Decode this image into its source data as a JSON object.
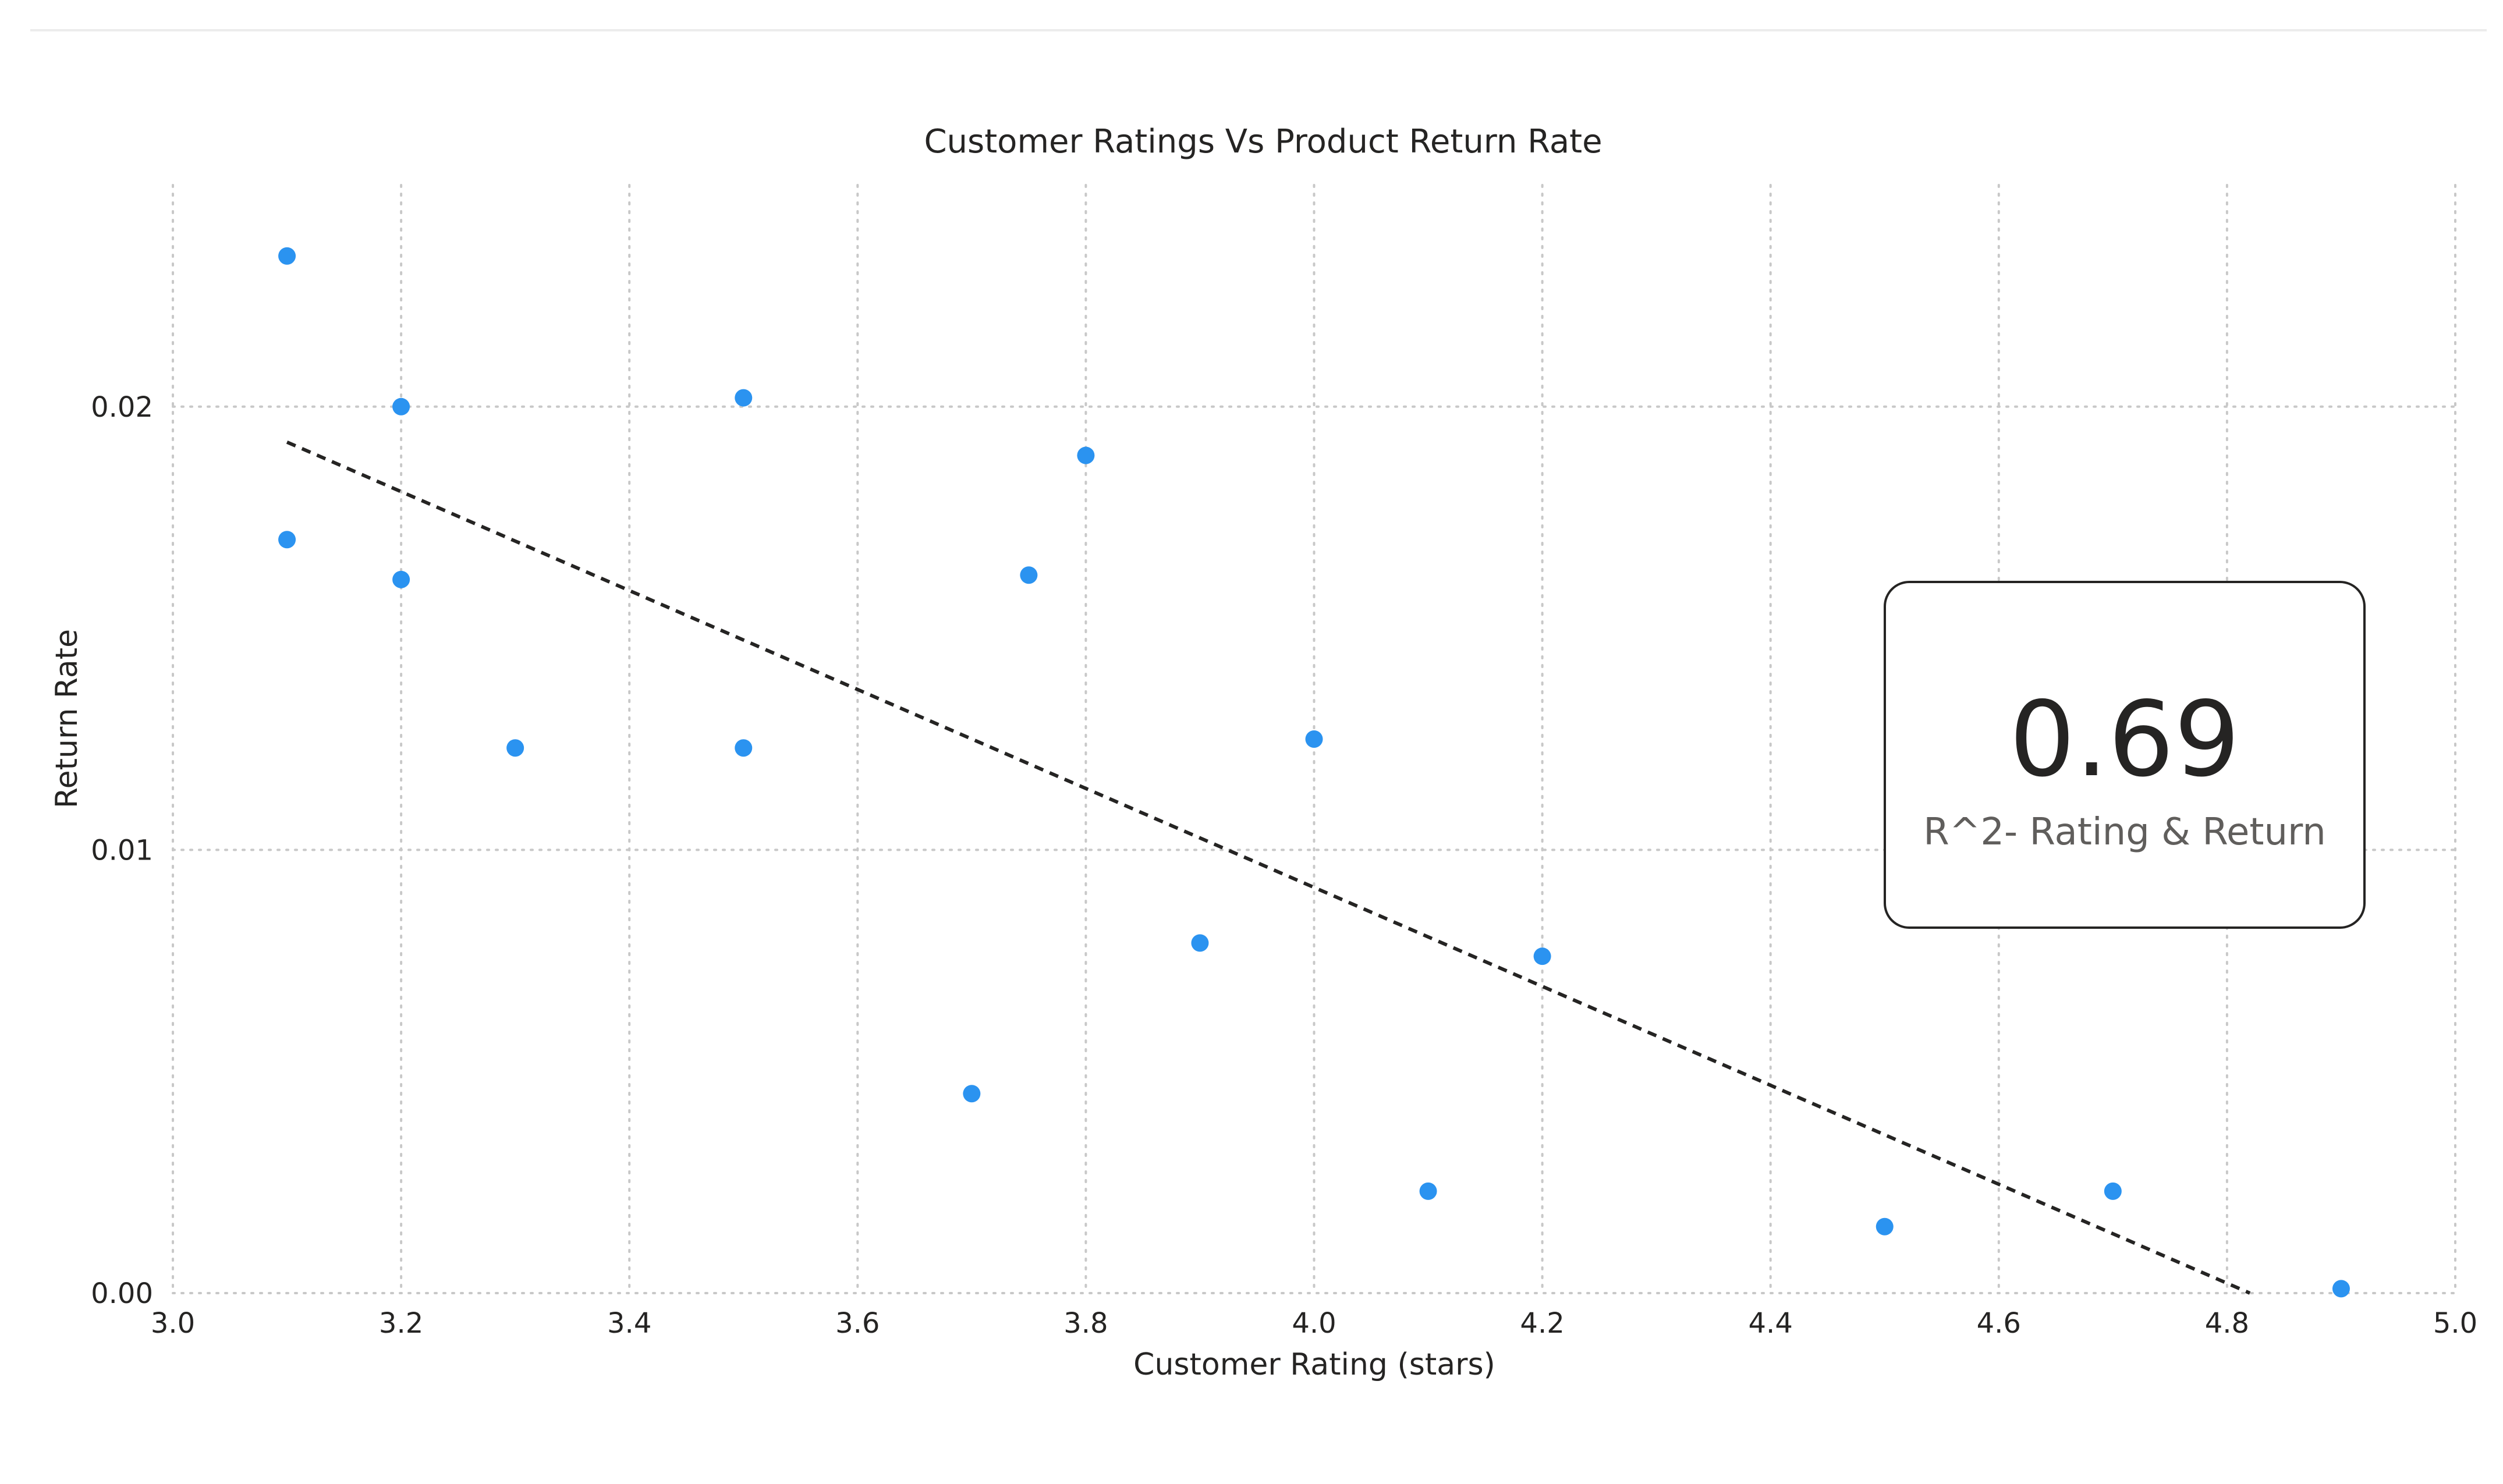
{
  "chart_data": {
    "type": "scatter",
    "title": "Customer Ratings Vs Product Return Rate",
    "xlabel": "Customer Rating (stars)",
    "ylabel": "Return Rate",
    "xlim": [
      3.0,
      5.0
    ],
    "ylim": [
      0.0,
      0.025
    ],
    "x_ticks": [
      3.0,
      3.2,
      3.4,
      3.6,
      3.8,
      4.0,
      4.2,
      4.4,
      4.6,
      4.8,
      5.0
    ],
    "x_tick_labels": [
      "3.0",
      "3.2",
      "3.4",
      "3.6",
      "3.8",
      "4.0",
      "4.2",
      "4.4",
      "4.6",
      "4.8",
      "5.0"
    ],
    "y_ticks": [
      0.0,
      0.01,
      0.02
    ],
    "y_tick_labels": [
      "0.00",
      "0.01",
      "0.02"
    ],
    "grid": true,
    "point_color": "#2b93f0",
    "trend_color": "#252423",
    "points": [
      {
        "x": 3.1,
        "y": 0.0234
      },
      {
        "x": 3.1,
        "y": 0.017
      },
      {
        "x": 3.2,
        "y": 0.02
      },
      {
        "x": 3.2,
        "y": 0.0161
      },
      {
        "x": 3.3,
        "y": 0.0123
      },
      {
        "x": 3.5,
        "y": 0.0202
      },
      {
        "x": 3.5,
        "y": 0.0123
      },
      {
        "x": 3.7,
        "y": 0.0045
      },
      {
        "x": 3.75,
        "y": 0.0162
      },
      {
        "x": 3.8,
        "y": 0.0189
      },
      {
        "x": 3.9,
        "y": 0.0079
      },
      {
        "x": 4.0,
        "y": 0.0125
      },
      {
        "x": 4.1,
        "y": 0.0023
      },
      {
        "x": 4.2,
        "y": 0.0076
      },
      {
        "x": 4.5,
        "y": 0.0015
      },
      {
        "x": 4.7,
        "y": 0.0023
      },
      {
        "x": 4.9,
        "y": 0.0001
      }
    ],
    "trend_line": {
      "x": [
        3.1,
        4.82
      ],
      "y": [
        0.0192,
        0.0
      ]
    },
    "kpi": {
      "value": "0.69",
      "label": "R^2- Rating & Return"
    }
  }
}
